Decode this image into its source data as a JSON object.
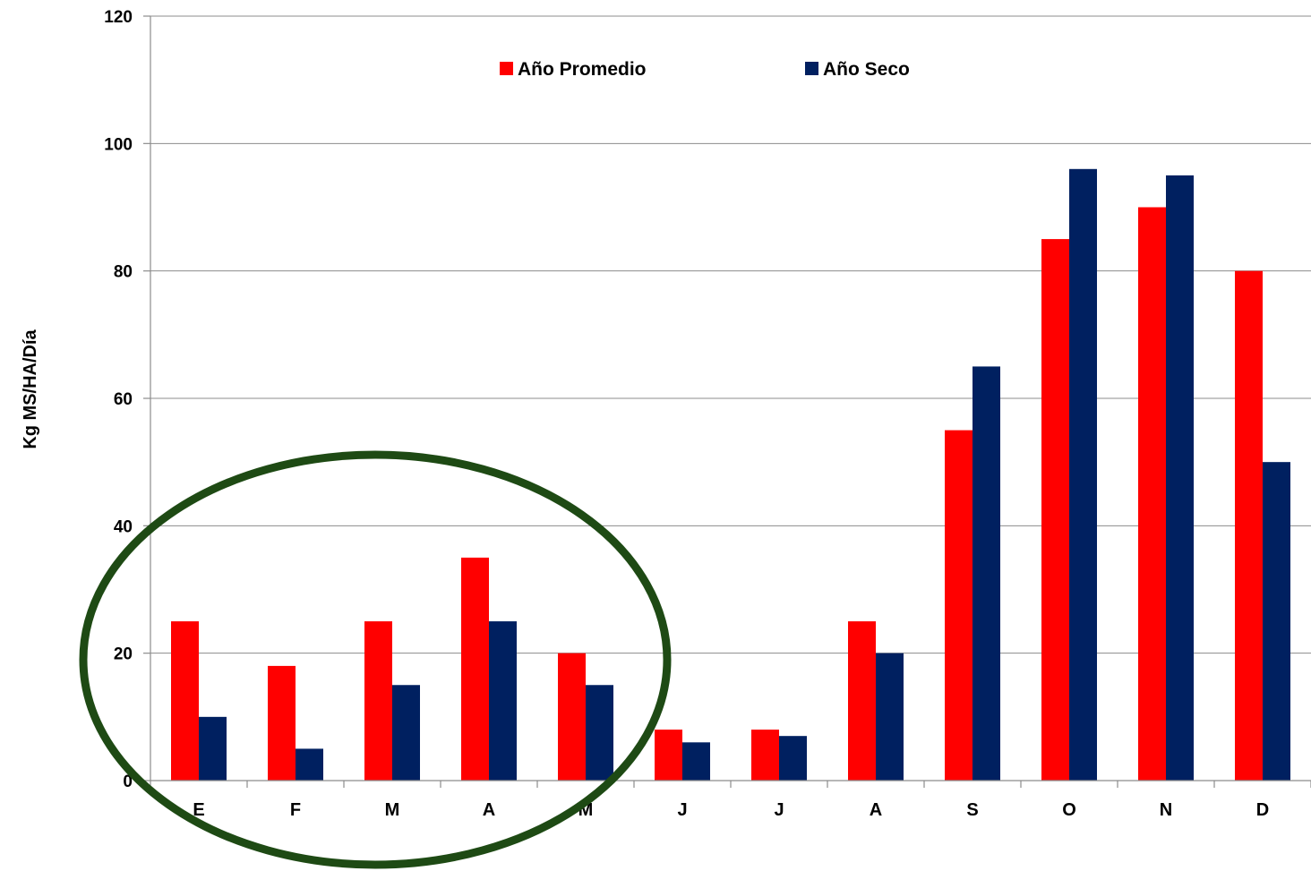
{
  "chart_data": {
    "type": "bar",
    "ylabel": "Kg MS/HA/Día",
    "categories": [
      "E",
      "F",
      "M",
      "A",
      "M",
      "J",
      "J",
      "A",
      "S",
      "O",
      "N",
      "D"
    ],
    "series": [
      {
        "name": "Año Promedio",
        "color": "#ff0000",
        "values": [
          25,
          18,
          25,
          35,
          20,
          8,
          8,
          25,
          55,
          85,
          90,
          80
        ]
      },
      {
        "name": "Año Seco",
        "color": "#002060",
        "values": [
          10,
          5,
          15,
          25,
          15,
          6,
          7,
          20,
          65,
          96,
          95,
          50
        ]
      }
    ],
    "ylim": [
      0,
      120
    ],
    "yticks": [
      0,
      20,
      40,
      60,
      80,
      100,
      120
    ],
    "grid": true,
    "legend": "top-center",
    "annotation": {
      "shape": "ellipse",
      "color": "#1e4a14",
      "encloses_categories": [
        0,
        1,
        2,
        3,
        4
      ]
    }
  }
}
